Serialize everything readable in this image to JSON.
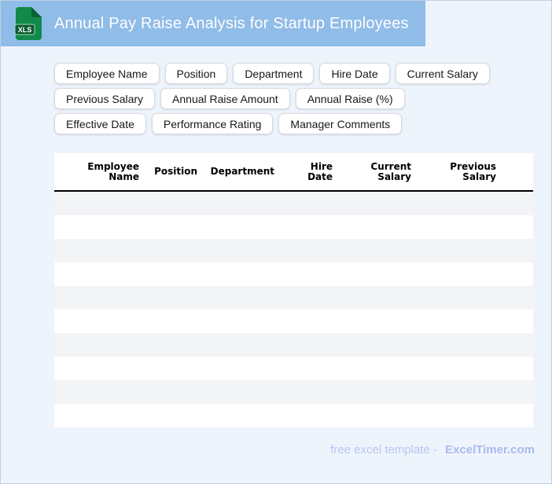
{
  "header": {
    "title": "Annual Pay Raise Analysis for Startup Employees",
    "icon_label": "XLS"
  },
  "tags": [
    "Employee Name",
    "Position",
    "Department",
    "Hire Date",
    "Current Salary",
    "Previous Salary",
    "Annual Raise Amount",
    "Annual Raise (%)",
    "Effective Date",
    "Performance Rating",
    "Manager Comments"
  ],
  "table": {
    "columns": [
      "Employee Name",
      "Position",
      "Department",
      "Hire Date",
      "Current Salary",
      "Previous Salary"
    ],
    "row_count": 10,
    "rows": []
  },
  "footer": {
    "label": "free excel template -",
    "brand": "ExcelTimer.com"
  },
  "colors": {
    "banner_blue": "#90bce8",
    "page_background": "#eef4fc",
    "row_stripe": "#f3f4f6",
    "icon_green": "#12884a",
    "icon_green_dark": "#0a5c30",
    "footer_text": "#b8c4f1",
    "footer_brand": "#aabaee"
  }
}
